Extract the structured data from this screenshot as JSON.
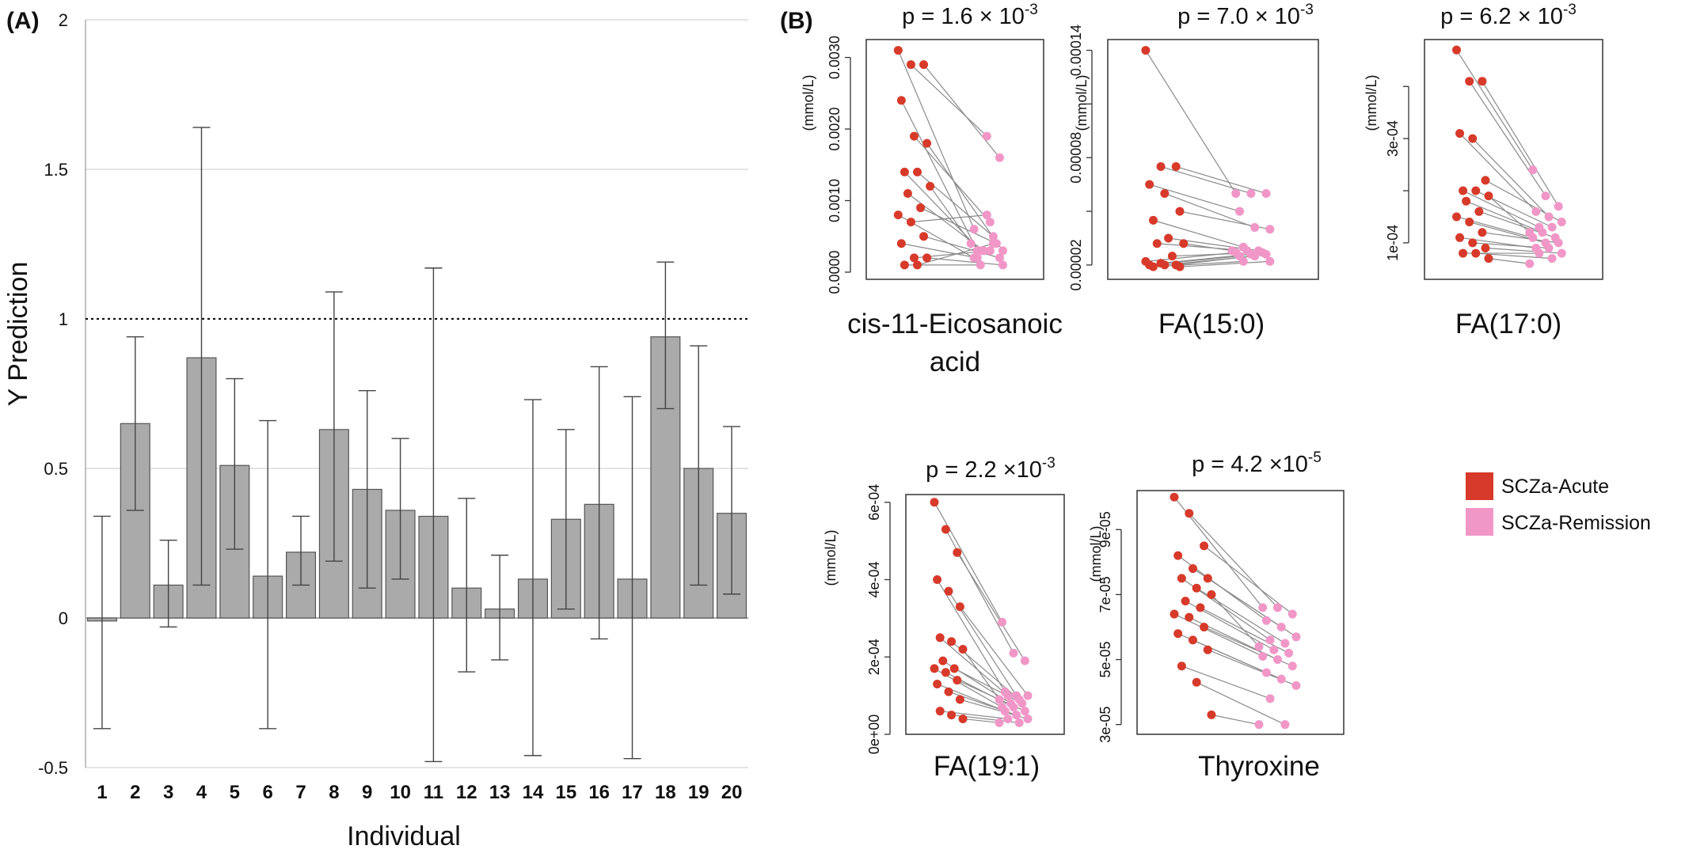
{
  "legend": {
    "items": [
      {
        "label": "SCZa-Acute",
        "color": "#d73a2a"
      },
      {
        "label": "SCZa-Remission",
        "color": "#f197c8"
      }
    ]
  },
  "chart_data": [
    {
      "panel": "(A)",
      "type": "bar",
      "ylabel": "Y Prediction",
      "xlabel": "Individual",
      "ylim": [
        -0.5,
        2
      ],
      "yticks": [
        "-0.5",
        "0",
        "0.5",
        "1",
        "1.5",
        "2"
      ],
      "grid": true,
      "reference_line": 1,
      "bar_color": "#aaaaaa",
      "categories": [
        "1",
        "2",
        "3",
        "4",
        "5",
        "6",
        "7",
        "8",
        "9",
        "10",
        "11",
        "12",
        "13",
        "14",
        "15",
        "16",
        "17",
        "18",
        "19",
        "20"
      ],
      "values": [
        -0.01,
        0.65,
        0.11,
        0.87,
        0.51,
        0.14,
        0.22,
        0.63,
        0.43,
        0.36,
        0.34,
        0.1,
        0.03,
        0.13,
        0.33,
        0.38,
        0.13,
        0.94,
        0.5,
        0.35
      ],
      "error_low": [
        -0.37,
        0.36,
        -0.03,
        0.11,
        0.23,
        -0.37,
        0.11,
        0.19,
        0.1,
        0.13,
        -0.48,
        -0.18,
        -0.14,
        -0.46,
        0.03,
        -0.07,
        -0.47,
        0.7,
        0.11,
        0.08
      ],
      "error_high": [
        0.34,
        0.94,
        0.26,
        1.64,
        0.8,
        0.66,
        0.34,
        1.09,
        0.76,
        0.6,
        1.17,
        0.4,
        0.21,
        0.73,
        0.63,
        0.84,
        0.74,
        1.19,
        0.91,
        0.64
      ]
    },
    {
      "panel": "(B)",
      "type": "scatter",
      "title": "p = 1.6 × 10",
      "title_exp": "-3",
      "name_lines": [
        "cis-11-Eicosanoic",
        "acid"
      ],
      "ylabel": "(mmol/L)",
      "ylim": [
        -0.0001,
        0.00325
      ],
      "yticks": [
        0,
        0.001,
        0.002,
        0.003
      ],
      "ytick_labels": [
        "0.0000",
        "0.0010",
        "0.0020",
        "0.0030"
      ],
      "series": [
        {
          "name": "SCZa-Acute",
          "values": [
            0.0031,
            0.0029,
            0.0029,
            0.0024,
            0.0019,
            0.0018,
            0.0014,
            0.0014,
            0.0012,
            0.0011,
            0.0009,
            0.0008,
            0.0007,
            0.0005,
            0.0004,
            0.0002,
            0.0002,
            0.0001,
            0.0001
          ]
        },
        {
          "name": "SCZa-Remission",
          "values": [
            0.0006,
            0.0019,
            0.0016,
            0.0003,
            0.0007,
            0.0003,
            0.0003,
            0.0005,
            0.0004,
            0.0003,
            0.0004,
            0.0002,
            0.0008,
            0.0002,
            0.0002,
            0.0003,
            0.0001,
            0.0001,
            0.0004
          ]
        }
      ]
    },
    {
      "type": "scatter",
      "title": "p = 7.0 × 10",
      "title_exp": "-3",
      "name_lines": [
        "FA(15:0)"
      ],
      "ylabel": "(mmol/L)",
      "ylim": [
        1.2e-05,
        0.000146
      ],
      "yticks": [
        2e-05,
        5e-05,
        8e-05,
        0.00011,
        0.00014
      ],
      "ytick_labels": [
        "0.00002",
        "",
        "0.00008",
        "",
        "0.00014"
      ],
      "series": [
        {
          "name": "SCZa-Acute",
          "values": [
            0.00014,
            7.5e-05,
            7.5e-05,
            6.5e-05,
            6e-05,
            5e-05,
            4.5e-05,
            3.5e-05,
            3.2e-05,
            3.2e-05,
            2.5e-05,
            2.2e-05,
            2.1e-05,
            2e-05,
            2e-05,
            2e-05,
            1.9e-05,
            1.9e-05
          ]
        },
        {
          "name": "SCZa-Remission",
          "values": [
            6e-05,
            6e-05,
            6e-05,
            5e-05,
            4.1e-05,
            4e-05,
            3e-05,
            2.8e-05,
            2.8e-05,
            2.8e-05,
            2.7e-05,
            2.7e-05,
            2.6e-05,
            2.6e-05,
            2.5e-05,
            2.5e-05,
            2.2e-05,
            2.2e-05
          ]
        }
      ]
    },
    {
      "type": "scatter",
      "title": "p = 6.2 × 10",
      "title_exp": "-3",
      "name_lines": [
        "FA(17:0)"
      ],
      "ylabel": "(mmol/L)",
      "ylim": [
        3e-05,
        0.00049
      ],
      "yticks": [
        0.0001,
        0.0002,
        0.0003,
        0.0004
      ],
      "ytick_labels": [
        "1e-04",
        "",
        "3e-04",
        ""
      ],
      "series": [
        {
          "name": "SCZa-Acute",
          "values": [
            0.00047,
            0.00041,
            0.00041,
            0.00031,
            0.0003,
            0.00022,
            0.0002,
            0.0002,
            0.00019,
            0.00018,
            0.00016,
            0.00015,
            0.00014,
            0.00012,
            0.00011,
            0.0001,
            9e-05,
            8e-05,
            8e-05,
            7e-05
          ]
        },
        {
          "name": "SCZa-Remission",
          "values": [
            0.00024,
            0.00019,
            0.00017,
            0.00016,
            0.00015,
            0.00014,
            0.00013,
            0.00013,
            0.00012,
            0.00012,
            0.00011,
            0.00011,
            0.0001,
            0.0001,
            9e-05,
            9e-05,
            8e-05,
            8e-05,
            7e-05,
            6e-05
          ]
        }
      ]
    },
    {
      "type": "scatter",
      "title": "p = 2.2 ×10",
      "title_exp": "-3",
      "name_lines": [
        "FA(19:1)"
      ],
      "ylabel": "(mmol/L)",
      "ylim": [
        0,
        0.00062
      ],
      "yticks": [
        0,
        0.0002,
        0.0004,
        0.0006
      ],
      "ytick_labels": [
        "0e+00",
        "2e-04",
        "4e-04",
        "6e-04"
      ],
      "series": [
        {
          "name": "SCZa-Acute",
          "values": [
            0.0006,
            0.00053,
            0.00047,
            0.0004,
            0.00037,
            0.00033,
            0.00025,
            0.00024,
            0.00022,
            0.00019,
            0.00017,
            0.00017,
            0.00016,
            0.00014,
            0.00013,
            0.00011,
            9e-05,
            6e-05,
            5e-05,
            4e-05
          ]
        },
        {
          "name": "SCZa-Remission",
          "values": [
            0.00029,
            0.00021,
            0.00019,
            0.00011,
            0.0001,
            0.0001,
            0.0001,
            9e-05,
            9e-05,
            8e-05,
            8e-05,
            7e-05,
            7e-05,
            6e-05,
            6e-05,
            5e-05,
            4e-05,
            4e-05,
            3e-05,
            3e-05
          ]
        }
      ]
    },
    {
      "type": "scatter",
      "title": "p = 4.2 ×10",
      "title_exp": "-5",
      "name_lines": [
        "Thyroxine"
      ],
      "ylabel": "(mmol/L)",
      "ylim": [
        2.7e-05,
        0.000102
      ],
      "yticks": [
        3e-05,
        5e-05,
        7e-05,
        9e-05
      ],
      "ytick_labels": [
        "3e-05",
        "5e-05",
        "7e-05",
        "9e-05"
      ],
      "series": [
        {
          "name": "SCZa-Acute",
          "values": [
            0.0001,
            9.5e-05,
            8.5e-05,
            8.2e-05,
            7.8e-05,
            7.5e-05,
            7.5e-05,
            7.2e-05,
            7e-05,
            6.8e-05,
            6.6e-05,
            6.4e-05,
            6.3e-05,
            6e-05,
            5.8e-05,
            5.6e-05,
            5.3e-05,
            4.8e-05,
            4.3e-05,
            3.3e-05
          ]
        },
        {
          "name": "SCZa-Remission",
          "values": [
            6.6e-05,
            6.6e-05,
            6.4e-05,
            6.2e-05,
            6e-05,
            5.7e-05,
            5.6e-05,
            5.5e-05,
            5.4e-05,
            5.3e-05,
            5.2e-05,
            5.1e-05,
            5e-05,
            4.8e-05,
            4.6e-05,
            4.4e-05,
            4.2e-05,
            3.8e-05,
            3e-05,
            3e-05
          ]
        }
      ]
    }
  ]
}
